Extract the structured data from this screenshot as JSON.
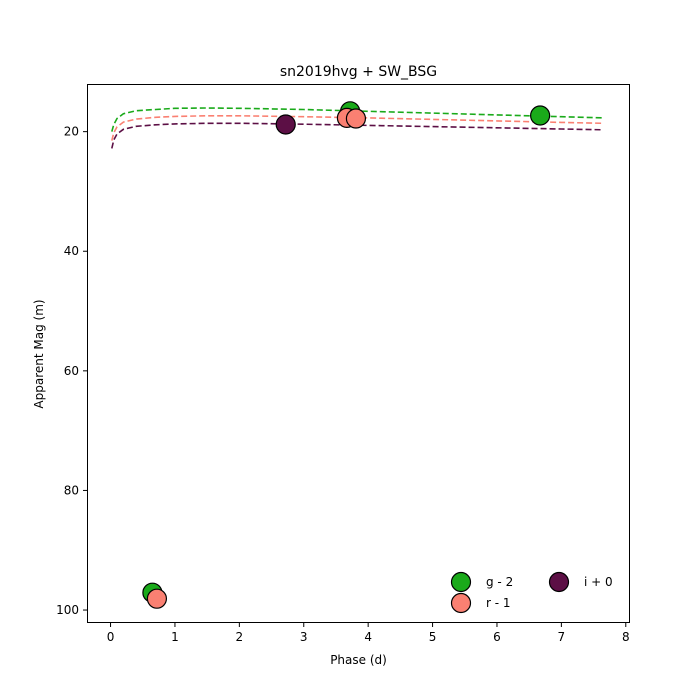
{
  "chart_data": {
    "type": "scatter",
    "title": "sn2019hvg + SW_BSG",
    "xlabel": "Phase (d)",
    "ylabel": "Apparent Mag (m)",
    "xlim": [
      -0.35,
      8.05
    ],
    "ylim": [
      102,
      12.2
    ],
    "y_inverted": true,
    "grid": false,
    "legend_position": "lower-right",
    "x_ticks": [
      0,
      1,
      2,
      3,
      4,
      5,
      6,
      7,
      8
    ],
    "y_ticks": [
      20,
      40,
      60,
      80,
      100
    ],
    "series": [
      {
        "name": "g - 2",
        "color": "#1aaa1a",
        "points": [
          {
            "x": 0.65,
            "y": 97.1
          },
          {
            "x": 3.72,
            "y": 16.6
          },
          {
            "x": 6.67,
            "y": 17.3
          }
        ],
        "model_curve": [
          {
            "x": 0.02,
            "y": 20.0
          },
          {
            "x": 0.05,
            "y": 18.8
          },
          {
            "x": 0.1,
            "y": 17.8
          },
          {
            "x": 0.2,
            "y": 17.0
          },
          {
            "x": 0.4,
            "y": 16.5
          },
          {
            "x": 0.7,
            "y": 16.3
          },
          {
            "x": 1.0,
            "y": 16.1
          },
          {
            "x": 1.5,
            "y": 16.05
          },
          {
            "x": 2.0,
            "y": 16.1
          },
          {
            "x": 3.0,
            "y": 16.3
          },
          {
            "x": 4.0,
            "y": 16.6
          },
          {
            "x": 5.0,
            "y": 16.9
          },
          {
            "x": 6.0,
            "y": 17.2
          },
          {
            "x": 7.0,
            "y": 17.5
          },
          {
            "x": 7.65,
            "y": 17.7
          }
        ]
      },
      {
        "name": "r - 1",
        "color": "#fa8072",
        "points": [
          {
            "x": 0.72,
            "y": 98.1
          },
          {
            "x": 3.67,
            "y": 17.7
          },
          {
            "x": 3.81,
            "y": 17.8
          }
        ],
        "model_curve": [
          {
            "x": 0.02,
            "y": 21.5
          },
          {
            "x": 0.05,
            "y": 20.2
          },
          {
            "x": 0.1,
            "y": 19.2
          },
          {
            "x": 0.2,
            "y": 18.4
          },
          {
            "x": 0.4,
            "y": 17.9
          },
          {
            "x": 0.7,
            "y": 17.6
          },
          {
            "x": 1.0,
            "y": 17.45
          },
          {
            "x": 1.5,
            "y": 17.35
          },
          {
            "x": 2.0,
            "y": 17.35
          },
          {
            "x": 3.0,
            "y": 17.5
          },
          {
            "x": 4.0,
            "y": 17.7
          },
          {
            "x": 5.0,
            "y": 17.95
          },
          {
            "x": 6.0,
            "y": 18.2
          },
          {
            "x": 7.0,
            "y": 18.45
          },
          {
            "x": 7.65,
            "y": 18.6
          }
        ]
      },
      {
        "name": "i + 0",
        "color": "#5c0f45",
        "points": [
          {
            "x": 2.72,
            "y": 18.8
          }
        ],
        "model_curve": [
          {
            "x": 0.02,
            "y": 22.8
          },
          {
            "x": 0.05,
            "y": 21.4
          },
          {
            "x": 0.1,
            "y": 20.4
          },
          {
            "x": 0.2,
            "y": 19.6
          },
          {
            "x": 0.4,
            "y": 19.1
          },
          {
            "x": 0.7,
            "y": 18.85
          },
          {
            "x": 1.0,
            "y": 18.7
          },
          {
            "x": 1.5,
            "y": 18.6
          },
          {
            "x": 2.0,
            "y": 18.6
          },
          {
            "x": 3.0,
            "y": 18.75
          },
          {
            "x": 4.0,
            "y": 18.95
          },
          {
            "x": 5.0,
            "y": 19.15
          },
          {
            "x": 6.0,
            "y": 19.35
          },
          {
            "x": 7.0,
            "y": 19.55
          },
          {
            "x": 7.65,
            "y": 19.7
          }
        ]
      }
    ]
  }
}
